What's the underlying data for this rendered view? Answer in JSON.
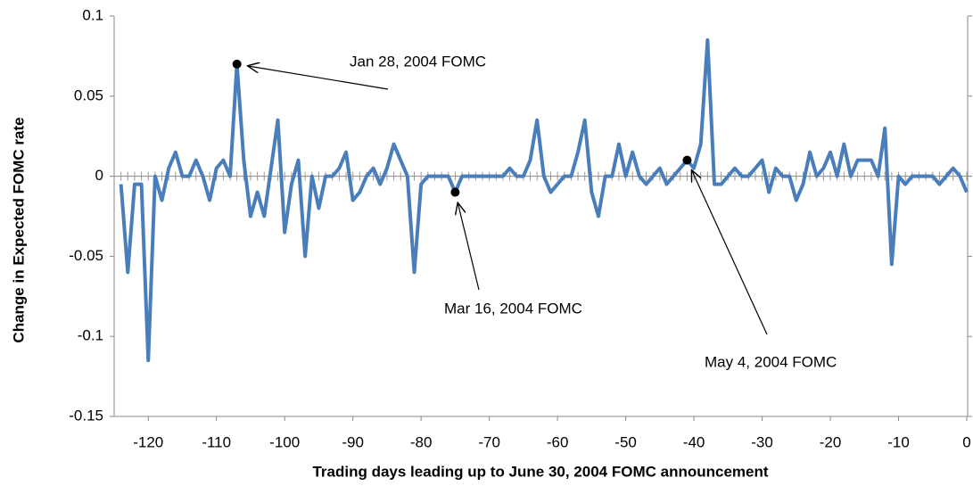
{
  "chart_data": {
    "type": "line",
    "xlabel": "Trading days leading up to June 30, 2004 FOMC announcement",
    "ylabel": "Change in Expected FOMC rate",
    "x": [
      -124,
      -123,
      -122,
      -121,
      -120,
      -119,
      -118,
      -117,
      -116,
      -115,
      -114,
      -113,
      -112,
      -111,
      -110,
      -109,
      -108,
      -107,
      -106,
      -105,
      -104,
      -103,
      -102,
      -101,
      -100,
      -99,
      -98,
      -97,
      -96,
      -95,
      -94,
      -93,
      -92,
      -91,
      -90,
      -89,
      -88,
      -87,
      -86,
      -85,
      -84,
      -83,
      -82,
      -81,
      -80,
      -79,
      -78,
      -77,
      -76,
      -75,
      -74,
      -73,
      -72,
      -71,
      -70,
      -69,
      -68,
      -67,
      -66,
      -65,
      -64,
      -63,
      -62,
      -61,
      -60,
      -59,
      -58,
      -57,
      -56,
      -55,
      -54,
      -53,
      -52,
      -51,
      -50,
      -49,
      -48,
      -47,
      -46,
      -45,
      -44,
      -43,
      -42,
      -41,
      -40,
      -39,
      -38,
      -37,
      -36,
      -35,
      -34,
      -33,
      -32,
      -31,
      -30,
      -29,
      -28,
      -27,
      -26,
      -25,
      -24,
      -23,
      -22,
      -21,
      -20,
      -19,
      -18,
      -17,
      -16,
      -15,
      -14,
      -13,
      -12,
      -11,
      -10,
      -9,
      -8,
      -7,
      -6,
      -5,
      -4,
      -3,
      -2,
      -1,
      0
    ],
    "series": [
      {
        "name": "Change in Expected FOMC rate",
        "color": "#4a7ebb",
        "values": [
          -0.005,
          -0.06,
          -0.005,
          -0.005,
          -0.115,
          0,
          -0.015,
          0.005,
          0.015,
          0,
          0,
          0.01,
          0,
          -0.015,
          0.005,
          0.01,
          0,
          0.07,
          0.01,
          -0.025,
          -0.01,
          -0.025,
          0.005,
          0.035,
          -0.035,
          -0.005,
          0.01,
          -0.05,
          0,
          -0.02,
          0,
          0,
          0.005,
          0.015,
          -0.015,
          -0.01,
          0,
          0.005,
          -0.005,
          0.005,
          0.02,
          0.01,
          0,
          -0.06,
          -0.005,
          0,
          0,
          0,
          0,
          -0.01,
          0,
          0,
          0,
          0,
          0,
          0,
          0,
          0.005,
          0,
          0,
          0.01,
          0.035,
          0,
          -0.01,
          -0.005,
          0,
          0,
          0.015,
          0.035,
          -0.01,
          -0.025,
          0,
          0,
          0.02,
          0,
          0.015,
          0,
          -0.005,
          0,
          0.005,
          -0.005,
          0,
          0.005,
          0.01,
          0.005,
          0.02,
          0.085,
          -0.005,
          -0.005,
          0,
          0.005,
          0,
          0,
          0.005,
          0.01,
          -0.01,
          0.005,
          0,
          0,
          -0.015,
          -0.005,
          0.015,
          0,
          0.005,
          0.015,
          0,
          0.02,
          0,
          0.01,
          0.01,
          0.01,
          0,
          0.03,
          -0.055,
          0,
          -0.005,
          0,
          0,
          0,
          0,
          -0.005,
          0,
          0.005,
          0,
          -0.01
        ]
      }
    ],
    "annotations": [
      {
        "text": "Jan 28, 2004 FOMC",
        "x": -107,
        "y": 0.07
      },
      {
        "text": "Mar 16, 2004 FOMC",
        "x": -75,
        "y": -0.01
      },
      {
        "text": "May 4, 2004 FOMC",
        "x": -41,
        "y": 0.01
      }
    ],
    "xlim": [
      -125,
      0
    ],
    "xticks": [
      -120,
      -110,
      -100,
      -90,
      -80,
      -70,
      -60,
      -50,
      -40,
      -30,
      -20,
      -10,
      0
    ],
    "ylim": [
      -0.15,
      0.1
    ],
    "yticks": [
      -0.15,
      -0.1,
      -0.05,
      0,
      0.05,
      0.1
    ],
    "grid": false
  }
}
